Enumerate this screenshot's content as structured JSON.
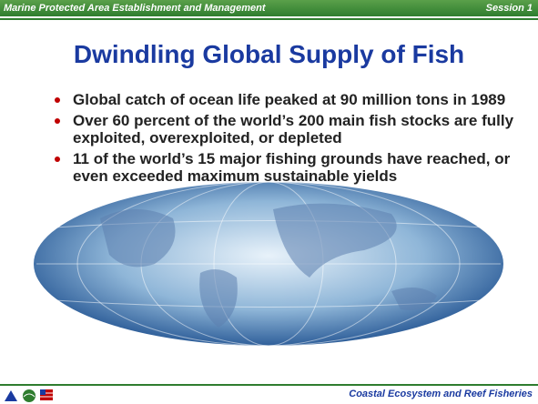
{
  "header": {
    "left": "Marine Protected Area Establishment and Management",
    "right": "Session 1"
  },
  "title": "Dwindling Global Supply of Fish",
  "bullets": [
    "Global catch of ocean life peaked at 90 million tons in 1989",
    "Over 60 percent of the world’s 200 main fish stocks are fully exploited, overexploited, or depleted",
    "11 of the world’s 15 major fishing grounds have reached, or even exceeded maximum sustainable yields"
  ],
  "footer": {
    "right": "Coastal Ecosystem and Reef Fisheries"
  }
}
